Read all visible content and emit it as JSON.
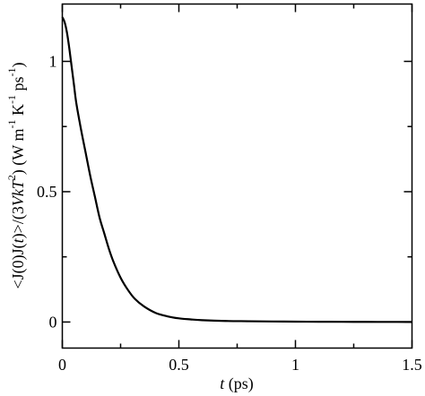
{
  "chart_data": {
    "type": "line",
    "title": "",
    "xlabel": {
      "var": "t",
      "rest": " (ps)"
    },
    "ylabel": {
      "p1": "<J(0)J(",
      "p2": "t",
      "p3": ")>/(3",
      "p4": "VkT",
      "sup2": "2",
      "p5": ") (W m",
      "supm1a": "-1",
      "p6": " K",
      "supm1b": "-1",
      "p7": " ps",
      "supm1c": "-1",
      "p8": ")"
    },
    "xlim": [
      0,
      1.5
    ],
    "ylim": [
      -0.1,
      1.22
    ],
    "xticks": [
      0,
      0.5,
      1,
      1.5
    ],
    "xtick_labels": [
      "0",
      "0.5",
      "1",
      "1.5"
    ],
    "yticks": [
      0,
      0.5,
      1
    ],
    "ytick_labels": [
      "0",
      "0.5",
      "1"
    ],
    "grid": false,
    "legend": "none",
    "series": [
      {
        "color": "#000000",
        "x": [
          0,
          0.01,
          0.02,
          0.03,
          0.04,
          0.05,
          0.06,
          0.08,
          0.1,
          0.12,
          0.14,
          0.16,
          0.18,
          0.2,
          0.22,
          0.25,
          0.28,
          0.31,
          0.35,
          0.4,
          0.45,
          0.5,
          0.55,
          0.6,
          0.7,
          0.8,
          0.9,
          1.0,
          1.1,
          1.2,
          1.3,
          1.4,
          1.5
        ],
        "y": [
          1.17,
          1.15,
          1.11,
          1.05,
          0.98,
          0.91,
          0.84,
          0.74,
          0.65,
          0.56,
          0.48,
          0.4,
          0.34,
          0.28,
          0.23,
          0.17,
          0.125,
          0.09,
          0.06,
          0.035,
          0.022,
          0.014,
          0.01,
          0.007,
          0.004,
          0.003,
          0.002,
          0.0015,
          0.001,
          0.0008,
          0.0005,
          0.0003,
          0.0002
        ]
      }
    ]
  }
}
